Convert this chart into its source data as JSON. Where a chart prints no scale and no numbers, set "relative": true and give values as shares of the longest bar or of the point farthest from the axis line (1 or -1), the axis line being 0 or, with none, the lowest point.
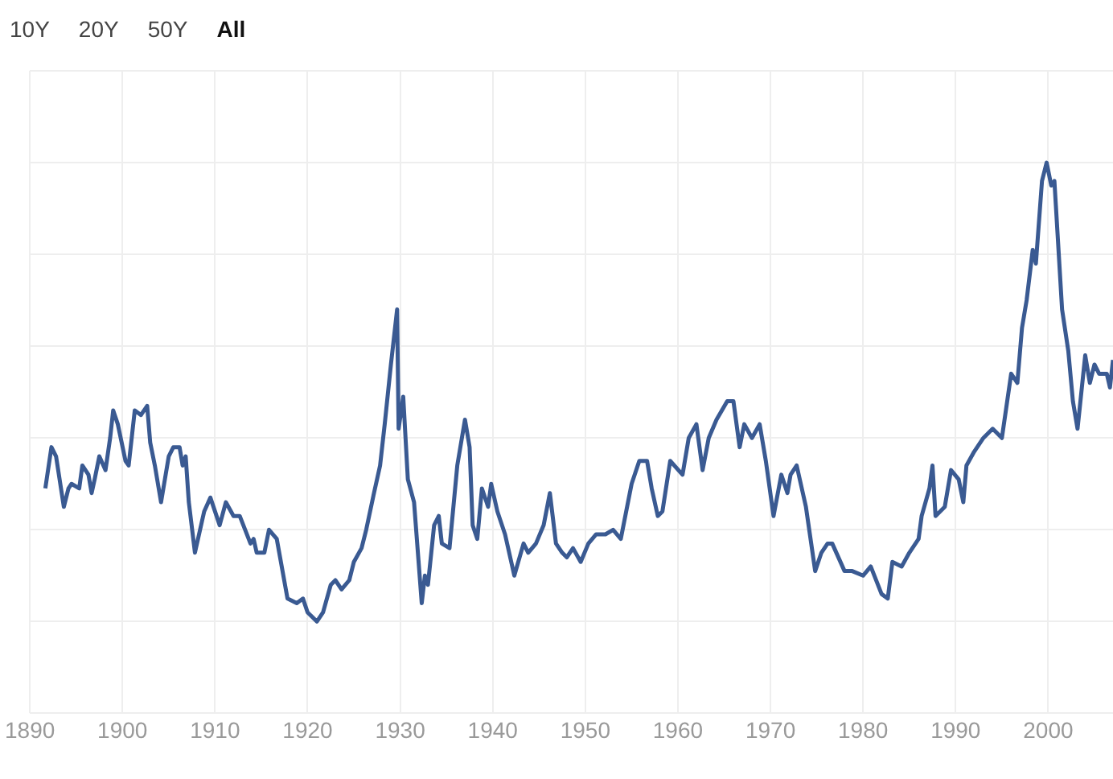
{
  "chart_data": {
    "type": "line",
    "relative": true,
    "annotations": [
      "10Y",
      "20Y",
      "50Y",
      "All"
    ],
    "xlim": [
      1890,
      2007
    ],
    "xticks": [
      1890,
      1900,
      1910,
      1920,
      1930,
      1940,
      1950,
      1960,
      1970,
      1980,
      1990,
      2000
    ],
    "grid": true,
    "legend": false,
    "marker": "none",
    "line_style": "solid",
    "series": [
      {
        "color": "#3a5a92",
        "x": [
          1891.67,
          1892.33,
          1892.83,
          1893.67,
          1894.17,
          1894.5,
          1895.33,
          1895.67,
          1896.33,
          1896.67,
          1897.0,
          1897.5,
          1898.17,
          1898.67,
          1899.0,
          1899.5,
          1900.33,
          1900.67,
          1901.33,
          1902.0,
          1902.67,
          1903.0,
          1903.5,
          1904.17,
          1905.0,
          1905.5,
          1906.17,
          1906.5,
          1906.83,
          1907.17,
          1907.83,
          1908.83,
          1909.5,
          1910.5,
          1911.17,
          1912.0,
          1912.67,
          1913.83,
          1914.17,
          1914.5,
          1915.33,
          1915.83,
          1916.67,
          1917.83,
          1918.83,
          1919.5,
          1920.0,
          1921.0,
          1921.67,
          1922.5,
          1923.0,
          1923.67,
          1924.5,
          1925.0,
          1925.83,
          1926.33,
          1927.17,
          1927.83,
          1928.33,
          1929.0,
          1929.67,
          1929.83,
          1930.33,
          1930.83,
          1931.5,
          1932.33,
          1932.67,
          1933.0,
          1933.67,
          1934.17,
          1934.5,
          1935.33,
          1936.17,
          1937.0,
          1937.5,
          1937.83,
          1938.33,
          1938.83,
          1939.5,
          1939.83,
          1940.5,
          1941.33,
          1942.33,
          1943.33,
          1943.83,
          1944.67,
          1945.5,
          1946.17,
          1946.83,
          1947.5,
          1948.0,
          1948.67,
          1949.5,
          1950.33,
          1951.17,
          1952.17,
          1953.0,
          1953.83,
          1955.0,
          1955.83,
          1956.67,
          1957.17,
          1957.83,
          1958.33,
          1959.17,
          1960.5,
          1961.17,
          1962.0,
          1962.67,
          1963.33,
          1964.17,
          1965.33,
          1966.0,
          1966.67,
          1967.17,
          1968.0,
          1968.83,
          1969.5,
          1970.33,
          1971.17,
          1971.83,
          1972.17,
          1972.83,
          1973.83,
          1974.83,
          1975.5,
          1976.17,
          1976.67,
          1978.0,
          1978.83,
          1980.0,
          1980.83,
          1982.0,
          1982.67,
          1983.17,
          1984.17,
          1985.0,
          1986.0,
          1986.33,
          1987.17,
          1987.5,
          1987.83,
          1988.83,
          1989.5,
          1990.33,
          1990.83,
          1991.17,
          1992.0,
          1993.0,
          1994.0,
          1995.0,
          1996.0,
          1996.67,
          1997.17,
          1997.67,
          1998.33,
          1998.67,
          1999.33,
          1999.83,
          2000.33,
          2000.67,
          2001.5,
          2002.17,
          2002.67,
          2003.17,
          2004.0,
          2004.5,
          2005.0,
          2005.5,
          2006.33,
          2006.67,
          2007.0
        ],
        "values": [
          0.29,
          0.38,
          0.36,
          0.25,
          0.29,
          0.3,
          0.29,
          0.34,
          0.32,
          0.28,
          0.31,
          0.36,
          0.33,
          0.4,
          0.46,
          0.43,
          0.35,
          0.34,
          0.46,
          0.45,
          0.47,
          0.39,
          0.34,
          0.26,
          0.36,
          0.38,
          0.38,
          0.34,
          0.36,
          0.26,
          0.15,
          0.24,
          0.27,
          0.21,
          0.26,
          0.23,
          0.23,
          0.17,
          0.18,
          0.15,
          0.15,
          0.2,
          0.18,
          0.05,
          0.04,
          0.05,
          0.02,
          0,
          0.02,
          0.08,
          0.09,
          0.07,
          0.09,
          0.13,
          0.16,
          0.2,
          0.28,
          0.34,
          0.43,
          0.56,
          0.68,
          0.42,
          0.49,
          0.31,
          0.26,
          0.04,
          0.1,
          0.08,
          0.21,
          0.23,
          0.17,
          0.16,
          0.34,
          0.44,
          0.38,
          0.21,
          0.18,
          0.29,
          0.25,
          0.3,
          0.24,
          0.19,
          0.1,
          0.17,
          0.15,
          0.17,
          0.21,
          0.28,
          0.17,
          0.15,
          0.14,
          0.16,
          0.13,
          0.17,
          0.19,
          0.19,
          0.2,
          0.18,
          0.3,
          0.35,
          0.35,
          0.29,
          0.23,
          0.24,
          0.35,
          0.32,
          0.4,
          0.43,
          0.33,
          0.4,
          0.44,
          0.48,
          0.48,
          0.38,
          0.43,
          0.4,
          0.43,
          0.35,
          0.23,
          0.32,
          0.28,
          0.32,
          0.34,
          0.25,
          0.11,
          0.15,
          0.17,
          0.17,
          0.11,
          0.11,
          0.1,
          0.12,
          0.06,
          0.05,
          0.13,
          0.12,
          0.15,
          0.18,
          0.23,
          0.29,
          0.34,
          0.23,
          0.25,
          0.33,
          0.31,
          0.26,
          0.34,
          0.37,
          0.4,
          0.42,
          0.4,
          0.54,
          0.52,
          0.64,
          0.7,
          0.81,
          0.78,
          0.96,
          1.0,
          0.95,
          0.96,
          0.68,
          0.59,
          0.48,
          0.42,
          0.58,
          0.52,
          0.56,
          0.54,
          0.54,
          0.51,
          0.57
        ]
      }
    ]
  }
}
